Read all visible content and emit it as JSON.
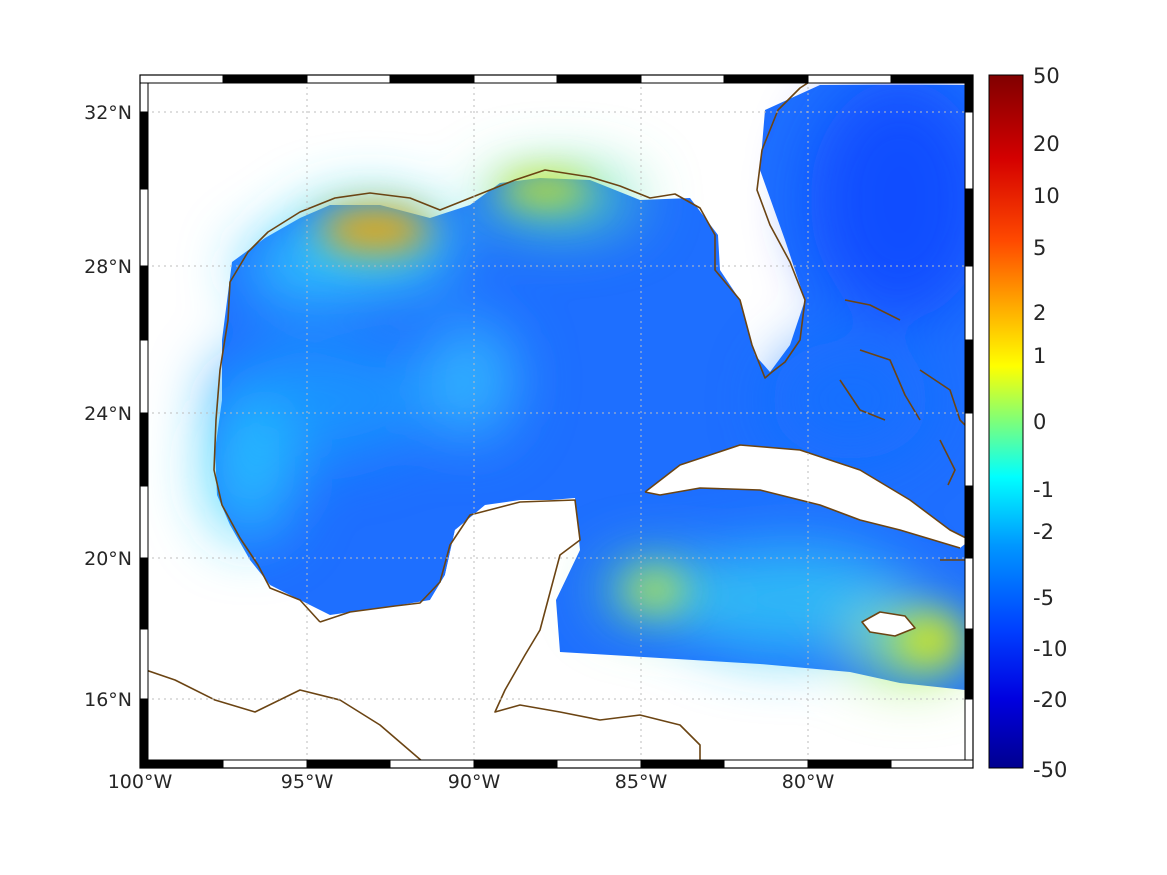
{
  "map": {
    "lat_ticks": [
      "32°N",
      "28°N",
      "24°N",
      "20°N",
      "16°N"
    ],
    "lon_ticks": [
      "100°W",
      "95°W",
      "90°W",
      "85°W",
      "80°W"
    ],
    "colorbar_ticks": [
      "50",
      "20",
      "10",
      "5",
      "2",
      "1",
      "0",
      "-1",
      "-2",
      "-5",
      "-10",
      "-20",
      "-50"
    ],
    "colors": {
      "coastline": "#6b4413",
      "grid": "#bdbdbd",
      "field_base": "#1e6fff",
      "colormap": [
        "#00008f",
        "#0000ff",
        "#0080ff",
        "#00ffff",
        "#80ff80",
        "#ffff00",
        "#ff8000",
        "#ff0000",
        "#800000"
      ]
    }
  }
}
